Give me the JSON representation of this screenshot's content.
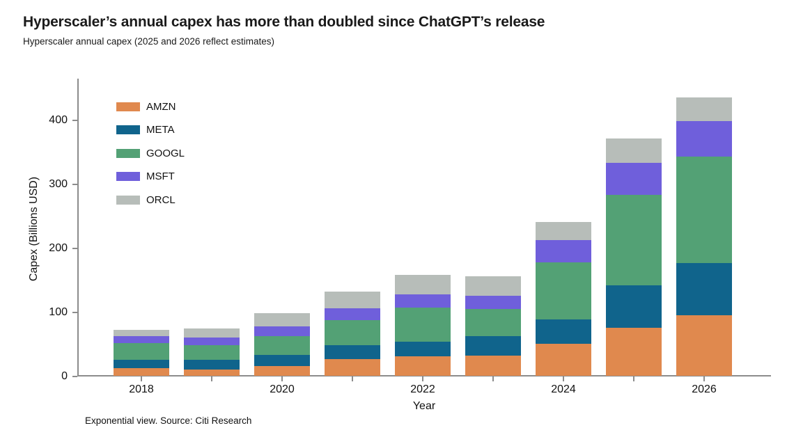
{
  "header": {
    "title": "Hyperscaler’s annual capex has more than doubled since ChatGPT’s release",
    "subtitle": "Hyperscaler annual capex (2025 and 2026 reflect estimates)"
  },
  "footer": {
    "text": "Exponential view. Source: Citi Research"
  },
  "chart_data": {
    "type": "bar",
    "stacked": true,
    "title": "Hyperscaler’s annual capex has more than doubled since ChatGPT’s release",
    "subtitle": "Hyperscaler annual capex (2025 and 2026 reflect estimates)",
    "xlabel": "Year",
    "ylabel": "Capex (Billions USD)",
    "categories": [
      "2018",
      "2019",
      "2020",
      "2021",
      "2022",
      "2023",
      "2024",
      "2025",
      "2026"
    ],
    "xtick_labels": [
      "2018",
      "2020",
      "2022",
      "2024",
      "2026"
    ],
    "yticks": [
      0,
      100,
      200,
      300,
      400
    ],
    "ylim": [
      0,
      460
    ],
    "grid": false,
    "legend_position": "upper-left-inside",
    "series": [
      {
        "name": "AMZN",
        "color": "#E0894E",
        "values": [
          13,
          10,
          16,
          27,
          31,
          32,
          51,
          76,
          95
        ]
      },
      {
        "name": "META",
        "color": "#10648C",
        "values": [
          13,
          16,
          17,
          21,
          23,
          30,
          38,
          66,
          82
        ]
      },
      {
        "name": "GOOGL",
        "color": "#53A175",
        "values": [
          26,
          22,
          30,
          39,
          53,
          43,
          89,
          141,
          166
        ]
      },
      {
        "name": "MSFT",
        "color": "#6F5FDB",
        "values": [
          10,
          12,
          15,
          19,
          21,
          21,
          34,
          50,
          55
        ]
      },
      {
        "name": "ORCL",
        "color": "#B7BDB9",
        "values": [
          10,
          14,
          20,
          26,
          30,
          30,
          29,
          38,
          37
        ]
      }
    ],
    "totals": [
      72,
      74,
      98,
      132,
      158,
      156,
      241,
      371,
      435
    ],
    "axis_color": "#8C8C8C",
    "text_color": "#111111",
    "background_color": "#FFFFFF"
  }
}
